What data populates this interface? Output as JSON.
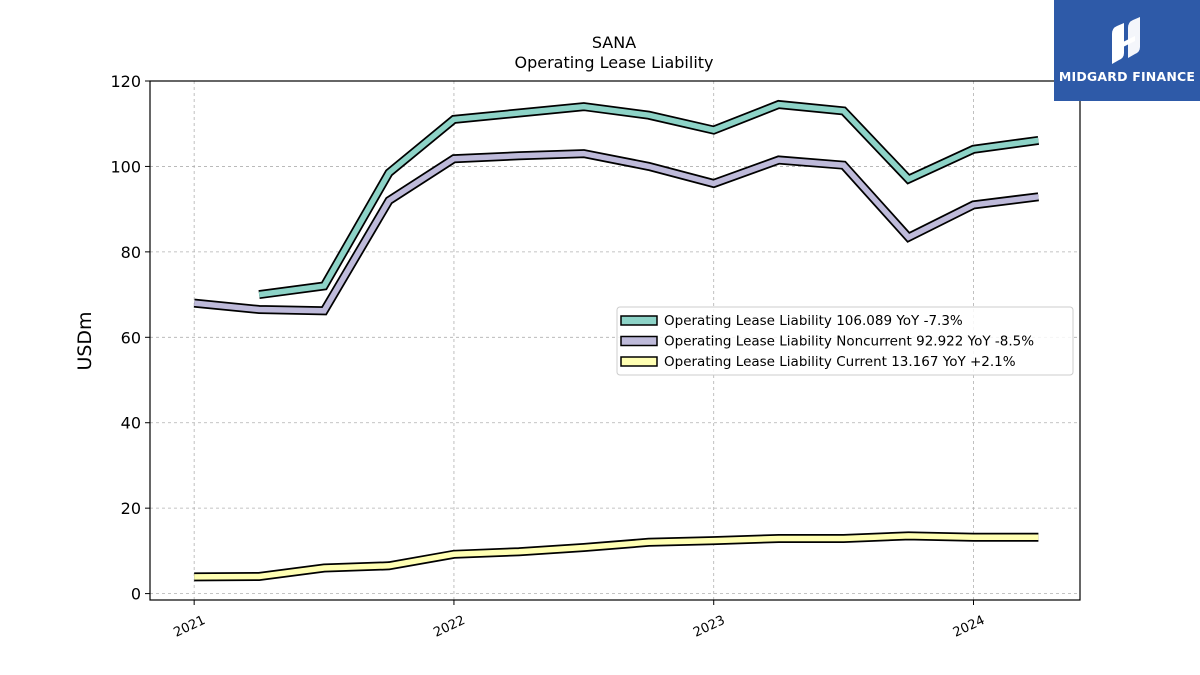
{
  "chart_data": {
    "type": "line",
    "title": "SANA",
    "subtitle": "Operating Lease Liability",
    "ylabel": "USDm",
    "xlabel": "",
    "ylim": [
      -1.5,
      120
    ],
    "xlim": [
      2020.83,
      2024.41
    ],
    "yticks": [
      0,
      20,
      40,
      60,
      80,
      100,
      120
    ],
    "xticks": [
      {
        "value": 2021,
        "label": "2021"
      },
      {
        "value": 2022,
        "label": "2022"
      },
      {
        "value": 2023,
        "label": "2023"
      },
      {
        "value": 2024,
        "label": "2024"
      }
    ],
    "grid": true,
    "legend_position": "center-right",
    "series": [
      {
        "name": "Operating Lease Liability  106.089 YoY -7.3%",
        "color": "#8dd3c7",
        "x": [
          2021.25,
          2021.5,
          2021.75,
          2022.0,
          2022.25,
          2022.5,
          2022.75,
          2023.0,
          2023.25,
          2023.5,
          2023.75,
          2024.0,
          2024.25
        ],
        "values": [
          70.0,
          72.0,
          98.5,
          111.0,
          112.5,
          114.0,
          112.0,
          108.5,
          114.5,
          113.0,
          97.0,
          104.0,
          106.1
        ]
      },
      {
        "name": "Operating Lease Liability Noncurrent  92.922 YoY -8.5%",
        "color": "#bebada",
        "x": [
          2021.0,
          2021.25,
          2021.5,
          2021.75,
          2022.0,
          2022.25,
          2022.5,
          2022.75,
          2023.0,
          2023.25,
          2023.5,
          2023.75,
          2024.0,
          2024.25
        ],
        "values": [
          68.0,
          66.5,
          66.2,
          92.0,
          101.8,
          102.5,
          103.0,
          100.0,
          96.0,
          101.5,
          100.3,
          83.4,
          91.0,
          92.9
        ]
      },
      {
        "name": "Operating Lease Liability Current  13.167 YoY +2.1%",
        "color": "#ffffb3",
        "x": [
          2021.0,
          2021.25,
          2021.5,
          2021.75,
          2022.0,
          2022.25,
          2022.5,
          2022.75,
          2023.0,
          2023.25,
          2023.5,
          2023.75,
          2024.0,
          2024.25
        ],
        "values": [
          3.9,
          4.0,
          6.0,
          6.5,
          9.2,
          9.8,
          10.8,
          12.0,
          12.4,
          12.9,
          12.9,
          13.5,
          13.2,
          13.2
        ]
      }
    ]
  },
  "branding": {
    "logo_text": "MIDGARD FINANCE",
    "logo_bg_color": "#2e5aa8"
  }
}
